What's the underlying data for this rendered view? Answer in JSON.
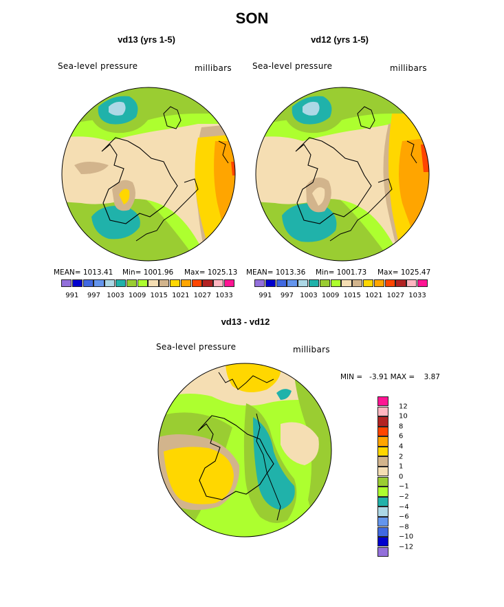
{
  "season_title": "SON",
  "panels": [
    {
      "title": "vd13 (yrs 1-5)",
      "variable_label": "Sea-level pressure",
      "units_label": "millibars",
      "stats": {
        "mean": "MEAN= 1013.41",
        "min": "Min= 1001.96",
        "max": "Max= 1025.13"
      }
    },
    {
      "title": "vd12 (yrs 1-5)",
      "variable_label": "Sea-level pressure",
      "units_label": "millibars",
      "stats": {
        "mean": "MEAN= 1013.36",
        "min": "Min= 1001.73",
        "max": "Max= 1025.47"
      }
    }
  ],
  "abs_colorbar": {
    "colors": [
      "#9370db",
      "#0000cd",
      "#4169e1",
      "#6495ed",
      "#add8e6",
      "#20b2aa",
      "#9acd32",
      "#adff2f",
      "#f5deb3",
      "#d2b48c",
      "#ffd700",
      "#ffa500",
      "#ff4500",
      "#b22222",
      "#ffb6c1",
      "#ff1493"
    ],
    "tick_labels": [
      "991",
      "997",
      "1003",
      "1009",
      "1015",
      "1021",
      "1027",
      "1033"
    ]
  },
  "diff_panel": {
    "title": "vd13 - vd12",
    "variable_label": "Sea-level pressure",
    "units_label": "millibars",
    "minmax": "MIN =   -3.91 MAX =    3.87"
  },
  "diff_colorbar": {
    "colors_top_to_bottom": [
      "#ff1493",
      "#ffb6c1",
      "#b22222",
      "#ff4500",
      "#ffa500",
      "#ffd700",
      "#d2b48c",
      "#f5deb3",
      "#9acd32",
      "#adff2f",
      "#20b2aa",
      "#add8e6",
      "#6495ed",
      "#4169e1",
      "#0000cd",
      "#9370db"
    ],
    "tick_labels": [
      "12",
      "10",
      "8",
      "6",
      "4",
      "2",
      "1",
      "0",
      "−1",
      "−2",
      "−4",
      "−6",
      "−8",
      "−10",
      "−12"
    ]
  }
}
